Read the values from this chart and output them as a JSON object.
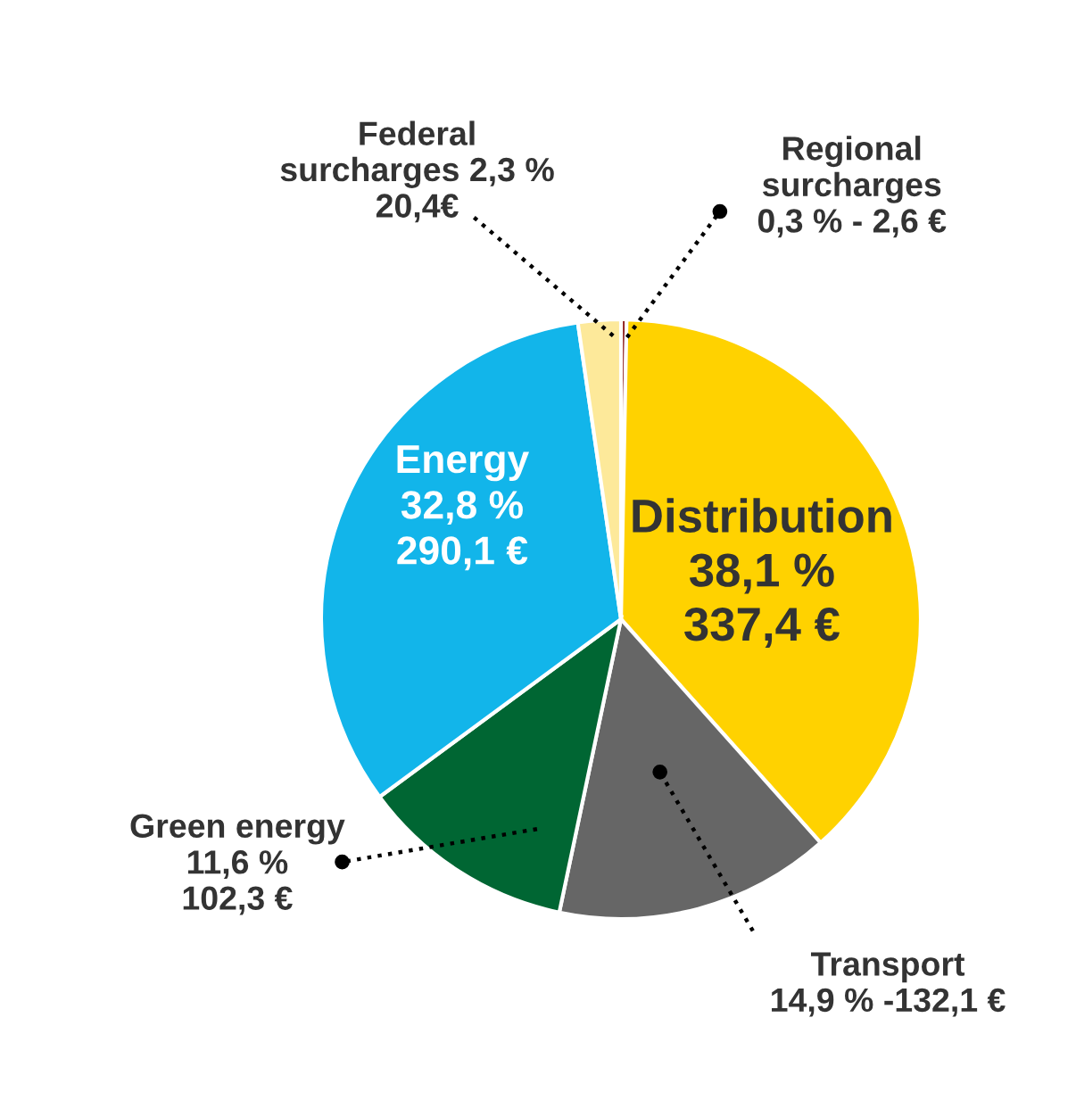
{
  "chart_data": {
    "type": "pie",
    "categories": [
      "Regional\nsurcharges",
      "Distribution",
      "Transport",
      "Green energy",
      "Energy",
      "Federal\nsurcharges"
    ],
    "values": [
      0.3,
      38.1,
      14.9,
      11.6,
      32.8,
      2.3
    ],
    "colors": [
      "#8b1a1a",
      "#ffd200",
      "#666666",
      "#006633",
      "#12b5ea",
      "#fde99a"
    ],
    "value_labels": [
      "\n0,3 % - 2,6 €",
      "\n38,1 %\n337,4 €",
      "\n14,9 % -132,1 €",
      "\n11,6 %\n102,3 €",
      "\n32,8 %\n290,1 €",
      " 2,3 %\n20,4€"
    ],
    "legend": false
  }
}
